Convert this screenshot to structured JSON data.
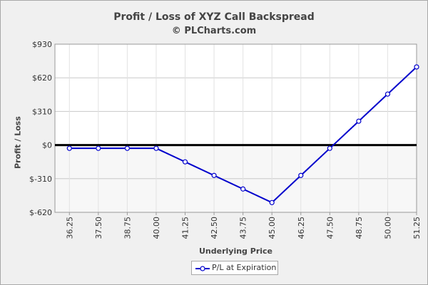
{
  "chart_data": {
    "type": "line",
    "title": "Profit / Loss of XYZ Call Backspread",
    "subtitle": "© PLCharts.com",
    "xlabel": "Underlying Price",
    "ylabel": "Profit / Loss",
    "categories": [
      "36.25",
      "37.50",
      "38.75",
      "40.00",
      "41.25",
      "42.50",
      "43.75",
      "45.00",
      "46.25",
      "47.50",
      "48.75",
      "50.00",
      "51.25"
    ],
    "series": [
      {
        "name": "P/L at Expiration",
        "color": "#0000cc",
        "values": [
          -30,
          -30,
          -30,
          -30,
          -155,
          -280,
          -405,
          -530,
          -280,
          -30,
          220,
          470,
          720
        ]
      }
    ],
    "ylim": [
      -620,
      930
    ],
    "yticks": [
      930,
      620,
      310,
      0,
      -310,
      -620
    ],
    "ytick_labels": [
      "$930",
      "$620",
      "$310",
      "$0",
      "$-310",
      "$-620"
    ],
    "grid": true,
    "legend": "bottom-center"
  }
}
